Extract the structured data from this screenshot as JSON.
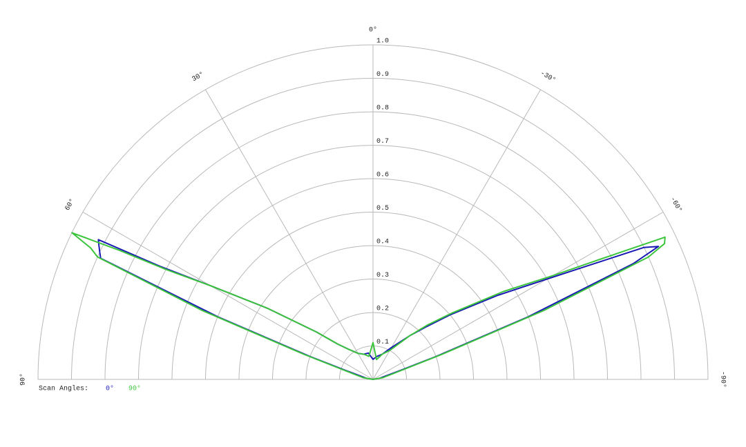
{
  "chart_data": {
    "type": "polar",
    "x": [
      -90,
      -80,
      -72,
      -70,
      -68,
      -66,
      -65,
      -64,
      -62,
      -60,
      -56,
      -50,
      -45,
      -40,
      -30,
      -20,
      -10,
      0,
      10,
      20,
      30,
      40,
      45,
      50,
      56,
      60,
      62,
      63,
      64,
      65,
      66,
      68,
      70,
      72,
      80,
      90
    ],
    "series": [
      {
        "name": "0°",
        "color": "#1a1ab4",
        "values": [
          0,
          0.02,
          0.08,
          0.2,
          0.5,
          0.85,
          0.94,
          0.9,
          0.72,
          0.6,
          0.45,
          0.3,
          0.22,
          0.17,
          0.11,
          0.08,
          0.07,
          0.06,
          0.08,
          0.08,
          0.09,
          0.12,
          0.15,
          0.22,
          0.38,
          0.56,
          0.72,
          0.92,
          0.91,
          0.9,
          0.89,
          0.5,
          0.2,
          0.08,
          0.02,
          0
        ]
      },
      {
        "name": "90°",
        "color": "#3cc43c",
        "values": [
          0,
          0.03,
          0.1,
          0.22,
          0.55,
          0.9,
          0.96,
          0.97,
          0.76,
          0.62,
          0.47,
          0.31,
          0.23,
          0.17,
          0.1,
          0.08,
          0.06,
          0.11,
          0.07,
          0.08,
          0.09,
          0.12,
          0.15,
          0.22,
          0.38,
          0.56,
          0.7,
          0.85,
          1.0,
          0.93,
          0.9,
          0.55,
          0.22,
          0.1,
          0.03,
          0
        ]
      }
    ],
    "rlim": [
      0,
      1
    ],
    "rticks": [
      0.1,
      0.2,
      0.3,
      0.4,
      0.5,
      0.6,
      0.7,
      0.8,
      0.9,
      {
        "value": 1,
        "label": "1.0"
      }
    ],
    "xlim": [
      -90,
      90
    ],
    "xticks": [
      {
        "value": 90,
        "label": "90°"
      },
      {
        "value": 60,
        "label": "60°"
      },
      {
        "value": 30,
        "label": "30°"
      },
      {
        "value": 0,
        "label": "0°"
      },
      {
        "value": -30,
        "label": "-30°"
      },
      {
        "value": -60,
        "label": "-60°"
      },
      {
        "value": -90,
        "label": "-90°"
      }
    ],
    "legend_title": "Scan Angles:"
  }
}
